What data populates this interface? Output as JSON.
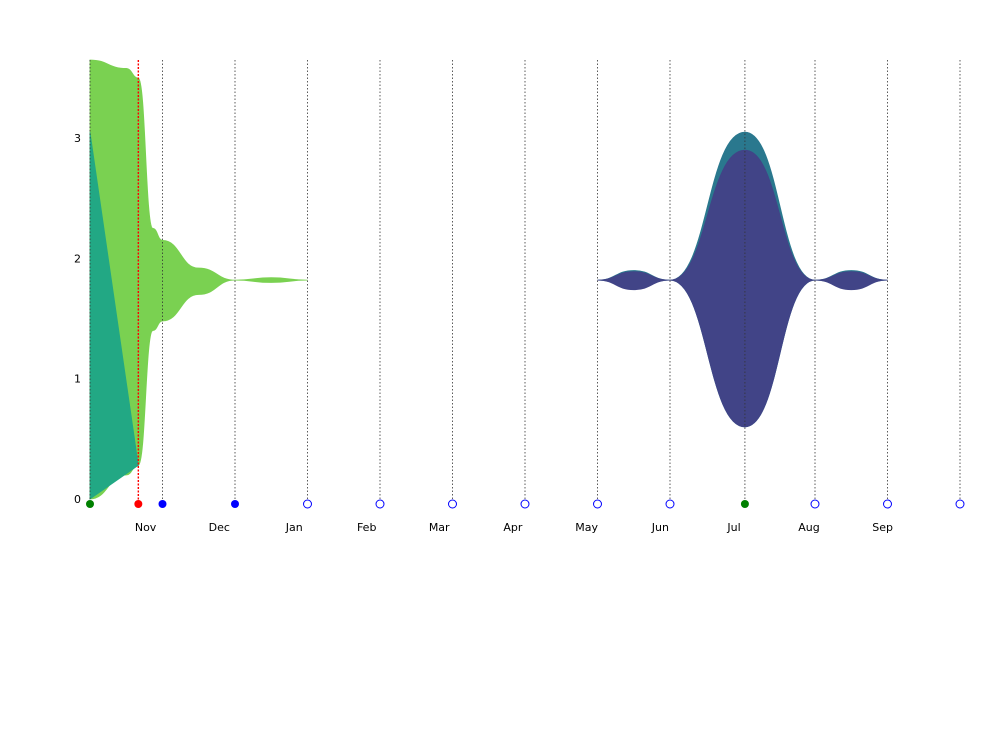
{
  "chart_data": {
    "type": "area",
    "title": "",
    "xlabel": "",
    "ylabel": "",
    "ylim": [
      0,
      3.65
    ],
    "yticks": [
      "0",
      "1",
      "2",
      "3"
    ],
    "month_labels": [
      "Nov",
      "Dec",
      "Jan",
      "Feb",
      "Mar",
      "Apr",
      "May",
      "Jun",
      "Jul",
      "Aug",
      "Sep"
    ],
    "grid": "vertical dotted lines at each marker date",
    "legend": "none",
    "marker_colors": {
      "green_filled": "#008000",
      "red_filled": "#ff0000",
      "blue_filled": "#0000ff",
      "blue_open": "#0000ff"
    },
    "markers": [
      {
        "date": "2023-10-24",
        "style": "green_filled"
      },
      {
        "date": "2023-11-13",
        "style": "red_filled"
      },
      {
        "date": "2023-11-23",
        "style": "blue_filled"
      },
      {
        "date": "2023-12-23",
        "style": "blue_filled"
      },
      {
        "date": "2024-01-22",
        "style": "blue_open"
      },
      {
        "date": "2024-02-21",
        "style": "blue_open"
      },
      {
        "date": "2024-03-22",
        "style": "blue_open"
      },
      {
        "date": "2024-04-21",
        "style": "blue_open"
      },
      {
        "date": "2024-05-21",
        "style": "blue_open"
      },
      {
        "date": "2024-06-20",
        "style": "blue_open"
      },
      {
        "date": "2024-07-21",
        "style": "green_filled"
      },
      {
        "date": "2024-08-19",
        "style": "blue_open"
      },
      {
        "date": "2024-09-18",
        "style": "blue_open"
      },
      {
        "date": "2024-10-18",
        "style": "blue_open"
      }
    ],
    "highlight_date": "2023-11-13",
    "series": [
      {
        "color": "#7ad151",
        "points": [
          [
            "2023-10-24",
            0,
            3.65
          ],
          [
            "2023-11-08",
            0.2,
            3.58
          ],
          [
            "2023-11-13",
            0.28,
            3.5
          ],
          [
            "2023-11-19",
            1.4,
            2.25
          ],
          [
            "2023-11-23",
            1.48,
            2.15
          ],
          [
            "2023-12-08",
            1.7,
            1.92
          ],
          [
            "2023-12-23",
            1.82,
            1.82
          ],
          [
            "2024-01-07",
            1.8,
            1.84
          ],
          [
            "2024-01-22",
            1.82,
            1.82
          ]
        ]
      },
      {
        "color": "#22a884",
        "points": [
          [
            "2023-10-24",
            0,
            3.05
          ],
          [
            "2023-11-13",
            0.28,
            0.28
          ]
        ]
      },
      {
        "color": "#2a788e",
        "points": [
          [
            "2024-05-21",
            1.82,
            1.82
          ],
          [
            "2024-06-05",
            1.75,
            1.9
          ],
          [
            "2024-06-20",
            1.82,
            1.82
          ],
          [
            "2024-07-21",
            0.6,
            3.05
          ],
          [
            "2024-08-19",
            1.82,
            1.82
          ],
          [
            "2024-09-03",
            1.75,
            1.9
          ],
          [
            "2024-09-18",
            1.82,
            1.82
          ]
        ]
      },
      {
        "color": "#414487",
        "points": [
          [
            "2024-05-21",
            1.82,
            1.82
          ],
          [
            "2024-06-05",
            1.74,
            1.89
          ],
          [
            "2024-06-20",
            1.82,
            1.82
          ],
          [
            "2024-07-21",
            0.6,
            2.9
          ],
          [
            "2024-08-19",
            1.82,
            1.82
          ],
          [
            "2024-09-03",
            1.74,
            1.89
          ],
          [
            "2024-09-18",
            1.82,
            1.82
          ]
        ]
      }
    ]
  }
}
